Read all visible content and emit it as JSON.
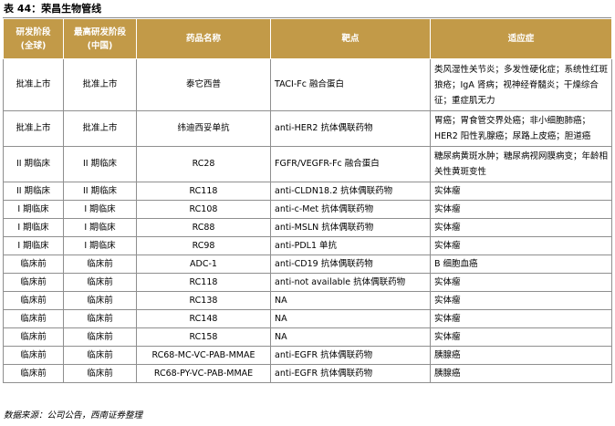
{
  "title": "表 44：荣昌生物管线",
  "headers": {
    "stage_global_line1": "研发阶段",
    "stage_global_line2": "(全球)",
    "stage_china_line1": "最高研发阶段",
    "stage_china_line2": "(中国)",
    "drug": "药品名称",
    "target": "靶点",
    "indication": "适应症"
  },
  "rows": [
    {
      "global": "批准上市",
      "china": "批准上市",
      "drug": "泰它西普",
      "target": "TACI-Fc 融合蛋白",
      "indication": "类风湿性关节炎；多发性硬化症；系统性红斑狼疮；IgA 肾病；视神经脊髓炎；干燥综合征；重症肌无力"
    },
    {
      "global": "批准上市",
      "china": "批准上市",
      "drug": "纬迪西妥单抗",
      "target": "anti-HER2 抗体偶联药物",
      "indication": "胃癌；胃食管交界处癌；非小细胞肺癌；HER2 阳性乳腺癌；尿路上皮癌；胆道癌"
    },
    {
      "global": "II 期临床",
      "china": "II 期临床",
      "drug": "RC28",
      "target": "FGFR/VEGFR-Fc 融合蛋白",
      "indication": "糖尿病黄斑水肿；糖尿病视网膜病变；年龄相关性黄斑变性"
    },
    {
      "global": "II 期临床",
      "china": "II 期临床",
      "drug": "RC118",
      "target": "anti-CLDN18.2 抗体偶联药物",
      "indication": "实体瘤"
    },
    {
      "global": "I 期临床",
      "china": "I 期临床",
      "drug": "RC108",
      "target": "anti-c-Met 抗体偶联药物",
      "indication": "实体瘤"
    },
    {
      "global": "I 期临床",
      "china": "I 期临床",
      "drug": "RC88",
      "target": "anti-MSLN 抗体偶联药物",
      "indication": "实体瘤"
    },
    {
      "global": "I 期临床",
      "china": "I 期临床",
      "drug": "RC98",
      "target": "anti-PDL1 单抗",
      "indication": "实体瘤"
    },
    {
      "global": "临床前",
      "china": "临床前",
      "drug": "ADC-1",
      "target": "anti-CD19 抗体偶联药物",
      "indication": "B 细胞血癌"
    },
    {
      "global": "临床前",
      "china": "临床前",
      "drug": "RC118",
      "target": "anti-not available 抗体偶联药物",
      "indication": "实体瘤"
    },
    {
      "global": "临床前",
      "china": "临床前",
      "drug": "RC138",
      "target": "NA",
      "indication": "实体瘤"
    },
    {
      "global": "临床前",
      "china": "临床前",
      "drug": "RC148",
      "target": "NA",
      "indication": "实体瘤"
    },
    {
      "global": "临床前",
      "china": "临床前",
      "drug": "RC158",
      "target": "NA",
      "indication": "实体瘤"
    },
    {
      "global": "临床前",
      "china": "临床前",
      "drug": "RC68-MC-VC-PAB-MMAE",
      "target": "anti-EGFR 抗体偶联药物",
      "indication": "胰腺癌"
    },
    {
      "global": "临床前",
      "china": "临床前",
      "drug": "RC68-PY-VC-PAB-MMAE",
      "target": "anti-EGFR 抗体偶联药物",
      "indication": "胰腺癌"
    }
  ],
  "source": "数据来源：公司公告，西南证券整理",
  "colors": {
    "header_bg": "#c29a48",
    "header_text": "#ffffff",
    "border": "#8f8f8f"
  }
}
